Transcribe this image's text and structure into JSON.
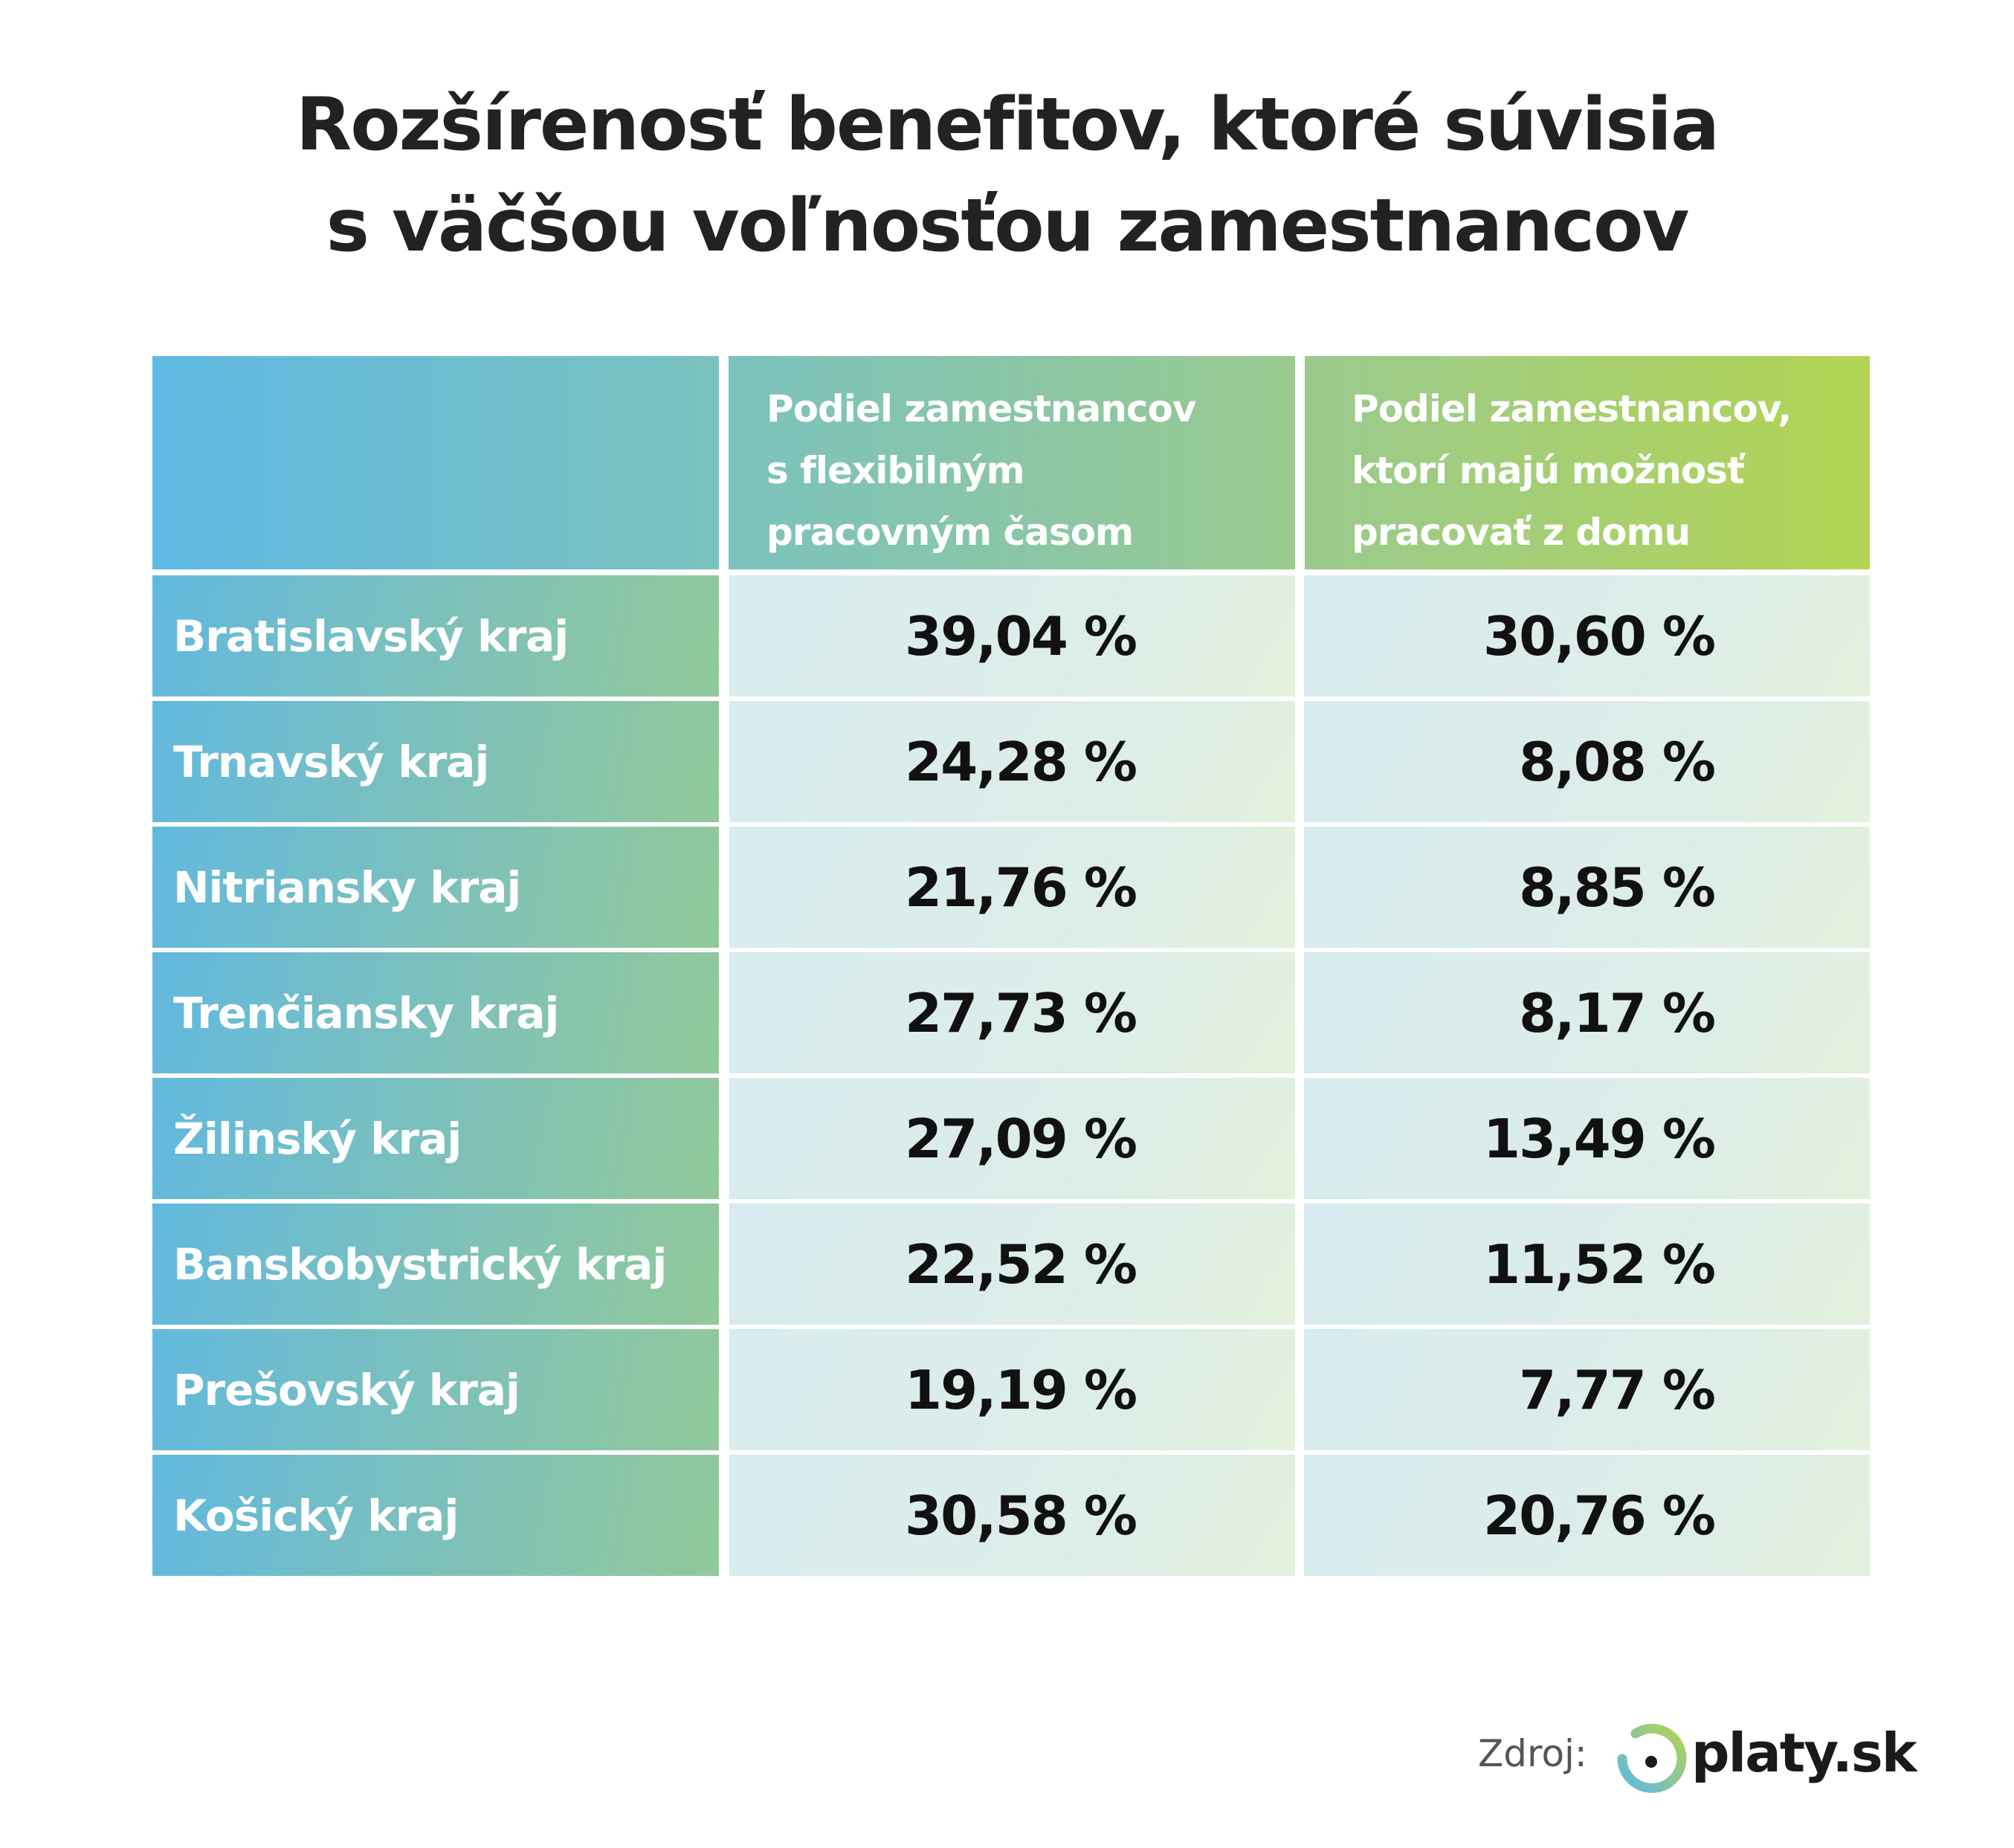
{
  "title": {
    "line1": "Rozšírenosť benefitov, ktoré súvisia",
    "line2": "s väčšou voľnosťou zamestnancov"
  },
  "table": {
    "headers": [
      "",
      [
        "Podiel zamestnancov",
        "s flexibilným",
        "pracovným časom"
      ],
      [
        "Podiel zamestnancov,",
        "ktorí majú možnosť",
        "pracovať z domu"
      ]
    ],
    "rows": [
      {
        "region": "Bratislavský kraj",
        "flexible": "39,04 %",
        "home": "30,60 %"
      },
      {
        "region": "Trnavský kraj",
        "flexible": "24,28 %",
        "home": "8,08 %"
      },
      {
        "region": "Nitriansky kraj",
        "flexible": "21,76 %",
        "home": "8,85 %"
      },
      {
        "region": "Trenčiansky kraj",
        "flexible": "27,73 %",
        "home": "8,17 %"
      },
      {
        "region": "Žilinský kraj",
        "flexible": "27,09 %",
        "home": "13,49 %"
      },
      {
        "region": "Banskobystrický kraj",
        "flexible": "22,52 %",
        "home": "11,52 %"
      },
      {
        "region": "Prešovský kraj",
        "flexible": "19,19 %",
        "home": "7,77 %"
      },
      {
        "region": "Košický kraj",
        "flexible": "30,58 %",
        "home": "20,76 %"
      }
    ]
  },
  "footer": {
    "source_label": "Zdroj:",
    "brand": "platy.sk",
    "logo_icon": "platy-ring-logo"
  },
  "colors": {
    "blue": "#5fb9e3",
    "green": "#b3d452",
    "text": "#222222"
  }
}
